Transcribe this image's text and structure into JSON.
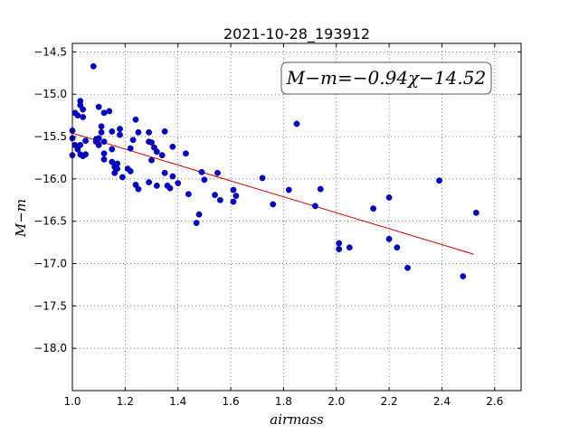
{
  "chart_data": {
    "type": "scatter",
    "title": "2021-10-28_193912",
    "xlabel": "airmass",
    "ylabel": "M−m",
    "xlim": [
      1.0,
      2.7
    ],
    "ylim": [
      -18.5,
      -14.4
    ],
    "y_inverted": true,
    "grid": true,
    "x_ticks": [
      1.0,
      1.2,
      1.4,
      1.6,
      1.8,
      2.0,
      2.2,
      2.4,
      2.6
    ],
    "x_tick_labels": [
      "1.0",
      "1.2",
      "1.4",
      "1.6",
      "1.8",
      "2.0",
      "2.2",
      "2.4",
      "2.6"
    ],
    "y_ticks": [
      -14.5,
      -15.0,
      -15.5,
      -16.0,
      -16.5,
      -17.0,
      -17.5,
      -18.0
    ],
    "y_tick_labels": [
      "−14.5",
      "−15.0",
      "−15.5",
      "−16.0",
      "−16.5",
      "−17.0",
      "−17.5",
      "−18.0"
    ],
    "annotation": "M−m=−0.94χ−14.52",
    "series": [
      {
        "kind": "points",
        "color": "#0000cc",
        "points": [
          [
            1.0,
            -15.43
          ],
          [
            1.0,
            -15.52
          ],
          [
            1.0,
            -15.72
          ],
          [
            1.01,
            -15.22
          ],
          [
            1.01,
            -15.6
          ],
          [
            1.02,
            -15.25
          ],
          [
            1.02,
            -15.65
          ],
          [
            1.03,
            -15.08
          ],
          [
            1.03,
            -15.13
          ],
          [
            1.03,
            -15.71
          ],
          [
            1.04,
            -15.27
          ],
          [
            1.04,
            -15.18
          ],
          [
            1.04,
            -15.73
          ],
          [
            1.03,
            -15.6
          ],
          [
            1.05,
            -15.55
          ],
          [
            1.05,
            -15.71
          ],
          [
            1.08,
            -14.67
          ],
          [
            1.09,
            -15.53
          ],
          [
            1.09,
            -15.56
          ],
          [
            1.1,
            -15.15
          ],
          [
            1.1,
            -15.6
          ],
          [
            1.1,
            -15.52
          ],
          [
            1.11,
            -15.38
          ],
          [
            1.11,
            -15.45
          ],
          [
            1.12,
            -15.22
          ],
          [
            1.12,
            -15.56
          ],
          [
            1.12,
            -15.7
          ],
          [
            1.12,
            -15.77
          ],
          [
            1.14,
            -15.2
          ],
          [
            1.15,
            -15.44
          ],
          [
            1.15,
            -15.65
          ],
          [
            1.15,
            -15.8
          ],
          [
            1.16,
            -15.93
          ],
          [
            1.16,
            -15.86
          ],
          [
            1.17,
            -15.82
          ],
          [
            1.17,
            -15.88
          ],
          [
            1.18,
            -15.41
          ],
          [
            1.18,
            -15.48
          ],
          [
            1.19,
            -15.98
          ],
          [
            1.21,
            -15.88
          ],
          [
            1.22,
            -15.91
          ],
          [
            1.22,
            -15.64
          ],
          [
            1.23,
            -15.54
          ],
          [
            1.24,
            -15.3
          ],
          [
            1.24,
            -16.07
          ],
          [
            1.25,
            -15.45
          ],
          [
            1.25,
            -16.12
          ],
          [
            1.29,
            -15.45
          ],
          [
            1.29,
            -15.56
          ],
          [
            1.29,
            -16.04
          ],
          [
            1.3,
            -15.57
          ],
          [
            1.3,
            -15.78
          ],
          [
            1.31,
            -15.63
          ],
          [
            1.32,
            -15.68
          ],
          [
            1.32,
            -16.08
          ],
          [
            1.34,
            -15.72
          ],
          [
            1.35,
            -15.44
          ],
          [
            1.35,
            -15.93
          ],
          [
            1.36,
            -16.08
          ],
          [
            1.37,
            -16.11
          ],
          [
            1.38,
            -15.97
          ],
          [
            1.38,
            -15.62
          ],
          [
            1.4,
            -16.05
          ],
          [
            1.43,
            -15.7
          ],
          [
            1.44,
            -16.18
          ],
          [
            1.47,
            -16.52
          ],
          [
            1.48,
            -16.42
          ],
          [
            1.49,
            -15.92
          ],
          [
            1.5,
            -16.01
          ],
          [
            1.54,
            -16.19
          ],
          [
            1.55,
            -15.93
          ],
          [
            1.56,
            -16.25
          ],
          [
            1.61,
            -16.13
          ],
          [
            1.61,
            -16.27
          ],
          [
            1.62,
            -16.2
          ],
          [
            1.72,
            -15.99
          ],
          [
            1.76,
            -16.3
          ],
          [
            1.82,
            -16.13
          ],
          [
            1.85,
            -15.35
          ],
          [
            1.92,
            -16.32
          ],
          [
            1.94,
            -16.12
          ],
          [
            2.01,
            -16.76
          ],
          [
            2.01,
            -16.83
          ],
          [
            2.05,
            -16.81
          ],
          [
            2.14,
            -16.35
          ],
          [
            2.2,
            -16.71
          ],
          [
            2.2,
            -16.22
          ],
          [
            2.23,
            -16.81
          ],
          [
            2.27,
            -17.05
          ],
          [
            2.39,
            -16.02
          ],
          [
            2.48,
            -17.15
          ],
          [
            2.53,
            -16.4
          ]
        ]
      },
      {
        "kind": "fit-line",
        "color": "#cc0000",
        "slope": -0.94,
        "intercept": -14.52,
        "x_range": [
          1.0,
          2.52
        ]
      }
    ]
  }
}
